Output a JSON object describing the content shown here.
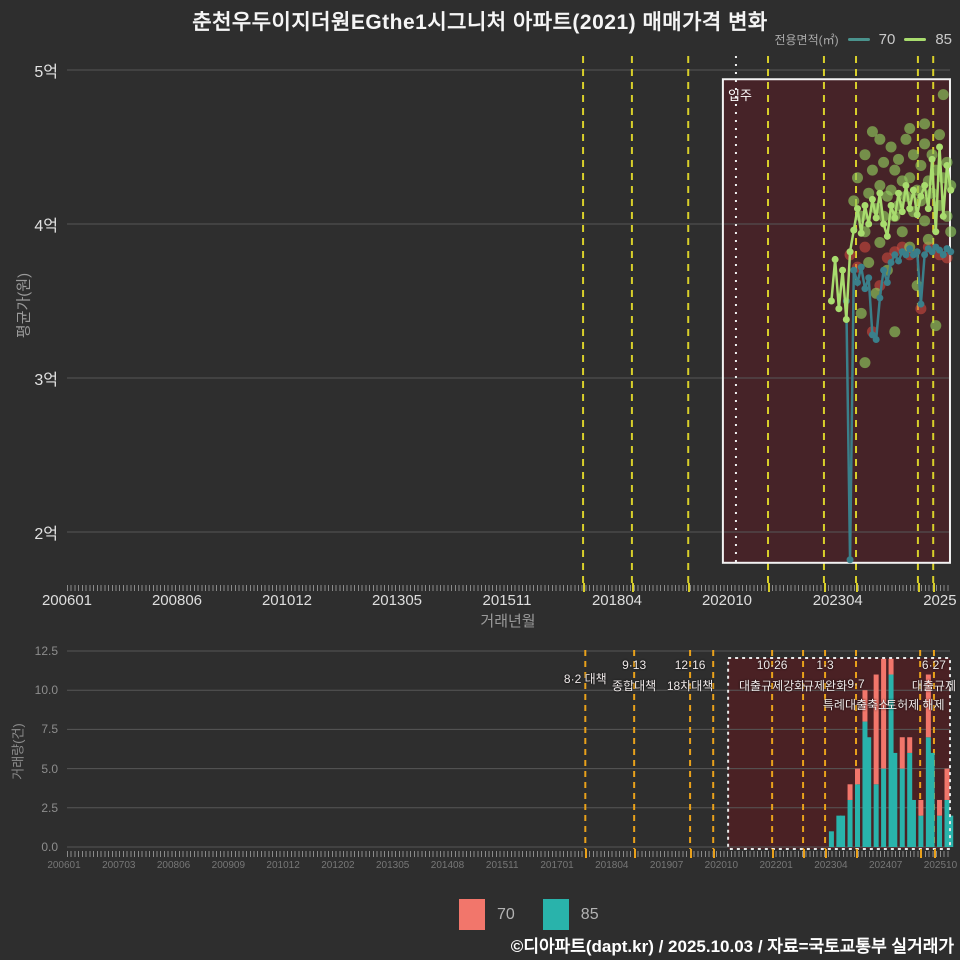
{
  "title": "춘천우두이지더원EGthe1시그니처 아파트(2021) 매매가격 변화",
  "footer": "©디아파트(dapt.kr) / 2025.10.03 / 자료=국토교통부 실거래가",
  "top_legend": {
    "label": "전용면적(㎡)",
    "items": [
      {
        "label": "70",
        "color": "#4a938d"
      },
      {
        "label": "85",
        "color": "#a8dc6e"
      }
    ]
  },
  "bottom_legend": {
    "items": [
      {
        "label": "70",
        "color": "#f2766b"
      },
      {
        "label": "85",
        "color": "#29b3ab"
      }
    ]
  },
  "colors": {
    "background": "#2e2e2e",
    "grid": "#575757",
    "event_line_top": "#d8cf2a",
    "event_line_bottom": "#e9a11b",
    "move_in_box_fill": "#462328",
    "highlight_box_fill": "#4a2124",
    "line_70": "#3a7f8a",
    "line_85": "#a8dc6e",
    "scatter_85": "#8fc95c",
    "scatter_70": "#d94f3f",
    "bar_70": "#f2766b",
    "bar_85": "#29b3ab"
  },
  "chart_data": [
    {
      "type": "scatter",
      "title": "매매가격 변화(평균가)",
      "ylabel": "평균가(원)",
      "xlabel": "거래년월",
      "ylim_eok": [
        1.7,
        5.1
      ],
      "yticks": [
        {
          "label": "5억",
          "v": 5
        },
        {
          "label": "4억",
          "v": 4
        },
        {
          "label": "3억",
          "v": 3
        },
        {
          "label": "2억",
          "v": 2
        }
      ],
      "xticks": [
        {
          "label": "200601",
          "m": 0
        },
        {
          "label": "200806",
          "m": 29.5
        },
        {
          "label": "201012",
          "m": 59
        },
        {
          "label": "201305",
          "m": 88.5
        },
        {
          "label": "201511",
          "m": 118
        },
        {
          "label": "201804",
          "m": 147.5
        },
        {
          "label": "202010",
          "m": 177
        },
        {
          "label": "202304",
          "m": 206.7
        },
        {
          "label": "2025",
          "m": 234.1
        }
      ],
      "event_lines_m": [
        138.4,
        151.5,
        166.6,
        188.0,
        203.0,
        211.6,
        228.2,
        232.3
      ],
      "move_in": {
        "label": "입주",
        "line_m": 179.4,
        "box_m": [
          175.9,
          236.8
        ],
        "box_v": [
          1.8,
          4.94
        ]
      },
      "series": [
        {
          "name": "70",
          "color": "#3a7f8a",
          "line": [
            [
              209,
              3.5
            ],
            [
              210,
              1.82
            ],
            [
              211,
              3.7
            ],
            [
              212,
              3.62
            ],
            [
              213,
              3.72
            ],
            [
              214,
              3.58
            ],
            [
              215,
              3.65
            ],
            [
              216,
              3.28
            ],
            [
              217,
              3.25
            ],
            [
              218,
              3.52
            ],
            [
              219,
              3.7
            ],
            [
              220,
              3.62
            ],
            [
              221,
              3.75
            ],
            [
              222,
              3.8
            ],
            [
              223,
              3.76
            ],
            [
              224,
              3.82
            ],
            [
              225,
              3.8
            ],
            [
              226,
              3.84
            ],
            [
              227,
              3.8
            ],
            [
              228,
              3.82
            ],
            [
              229,
              3.48
            ],
            [
              230,
              3.8
            ],
            [
              231,
              3.84
            ],
            [
              232,
              3.82
            ],
            [
              233,
              3.85
            ],
            [
              234,
              3.83
            ],
            [
              235,
              3.8
            ],
            [
              236,
              3.84
            ],
            [
              237,
              3.82
            ]
          ]
        },
        {
          "name": "85",
          "color": "#a8dc6e",
          "line": [
            [
              205,
              3.5
            ],
            [
              206,
              3.77
            ],
            [
              207,
              3.45
            ],
            [
              208,
              3.7
            ],
            [
              209,
              3.38
            ],
            [
              210,
              3.82
            ],
            [
              211,
              3.96
            ],
            [
              212,
              4.1
            ],
            [
              213,
              3.94
            ],
            [
              214,
              4.12
            ],
            [
              215,
              4.0
            ],
            [
              216,
              4.16
            ],
            [
              217,
              4.04
            ],
            [
              218,
              4.2
            ],
            [
              219,
              4.0
            ],
            [
              220,
              3.92
            ],
            [
              221,
              4.12
            ],
            [
              222,
              4.04
            ],
            [
              223,
              4.2
            ],
            [
              224,
              4.08
            ],
            [
              225,
              4.25
            ],
            [
              226,
              4.1
            ],
            [
              227,
              4.22
            ],
            [
              228,
              4.06
            ],
            [
              229,
              4.18
            ],
            [
              230,
              4.25
            ],
            [
              231,
              4.1
            ],
            [
              232,
              4.42
            ],
            [
              233,
              3.95
            ],
            [
              234,
              4.5
            ],
            [
              235,
              4.05
            ],
            [
              236,
              4.38
            ],
            [
              237,
              4.22
            ]
          ]
        }
      ],
      "scatter": [
        {
          "name": "85",
          "color": "#8fc95c",
          "opacity": 0.65,
          "points": [
            [
              211,
              4.15
            ],
            [
              212,
              4.3
            ],
            [
              213,
              4.05
            ],
            [
              213,
              3.42
            ],
            [
              214,
              4.45
            ],
            [
              214,
              3.95
            ],
            [
              214,
              3.1
            ],
            [
              215,
              4.2
            ],
            [
              215,
              3.75
            ],
            [
              216,
              4.35
            ],
            [
              216,
              4.6
            ],
            [
              217,
              4.1
            ],
            [
              217,
              3.55
            ],
            [
              218,
              4.25
            ],
            [
              218,
              3.88
            ],
            [
              218,
              4.55
            ],
            [
              219,
              4.4
            ],
            [
              219,
              4.05
            ],
            [
              220,
              4.18
            ],
            [
              220,
              3.7
            ],
            [
              221,
              4.5
            ],
            [
              221,
              4.22
            ],
            [
              222,
              4.35
            ],
            [
              222,
              3.3
            ],
            [
              222,
              4.05
            ],
            [
              223,
              4.42
            ],
            [
              223,
              4.12
            ],
            [
              224,
              4.28
            ],
            [
              224,
              3.95
            ],
            [
              225,
              4.55
            ],
            [
              225,
              4.18
            ],
            [
              226,
              4.3
            ],
            [
              226,
              3.85
            ],
            [
              226,
              4.62
            ],
            [
              227,
              4.45
            ],
            [
              227,
              4.08
            ],
            [
              228,
              4.22
            ],
            [
              228,
              3.6
            ],
            [
              229,
              4.38
            ],
            [
              229,
              4.15
            ],
            [
              230,
              4.52
            ],
            [
              230,
              4.02
            ],
            [
              230,
              4.65
            ],
            [
              231,
              4.28
            ],
            [
              231,
              3.9
            ],
            [
              232,
              4.45
            ],
            [
              232,
              4.2
            ],
            [
              233,
              4.35
            ],
            [
              233,
              3.34
            ],
            [
              234,
              4.58
            ],
            [
              234,
              4.12
            ],
            [
              235,
              4.84
            ],
            [
              235,
              4.3
            ],
            [
              236,
              4.4
            ],
            [
              236,
              4.05
            ],
            [
              237,
              4.25
            ],
            [
              237,
              3.95
            ]
          ]
        },
        {
          "name": "70",
          "color": "#d94f3f",
          "opacity": 0.55,
          "points": [
            [
              210,
              3.8
            ],
            [
              212,
              3.72
            ],
            [
              214,
              3.85
            ],
            [
              216,
              3.3
            ],
            [
              218,
              3.6
            ],
            [
              220,
              3.78
            ],
            [
              222,
              3.82
            ],
            [
              224,
              3.85
            ],
            [
              226,
              3.8
            ],
            [
              229,
              3.45
            ],
            [
              231,
              3.85
            ],
            [
              234,
              3.8
            ],
            [
              236,
              3.78
            ]
          ]
        }
      ]
    },
    {
      "type": "bar",
      "stacked": true,
      "title": "거래량",
      "ylabel": "거래량(건)",
      "ylim": [
        0,
        12.5
      ],
      "yticks": [
        {
          "label": "12.5",
          "u": 12.5
        },
        {
          "label": "10.0",
          "u": 10
        },
        {
          "label": "7.5",
          "u": 7.5
        },
        {
          "label": "5.0",
          "u": 5
        },
        {
          "label": "2.5",
          "u": 2.5
        },
        {
          "label": "0.0",
          "u": 0
        }
      ],
      "xticks": [
        "200601",
        "200703",
        "200806",
        "200909",
        "201012",
        "201202",
        "201305",
        "201408",
        "201511",
        "201701",
        "201804",
        "201907",
        "202010",
        "202201",
        "202304",
        "202407",
        "202510"
      ],
      "event_lines_m": [
        139.0,
        152.1,
        167.1,
        173.3,
        189.1,
        197.4,
        203.3,
        211.6,
        228.8,
        232.5
      ],
      "highlight_box_m": [
        177.3,
        236.8
      ],
      "annotations": [
        {
          "m": 139.0,
          "lines": [
            "8·2 대책"
          ],
          "dy": 12
        },
        {
          "m": 152.1,
          "lines": [
            "9·13",
            "종합대책"
          ],
          "dy": 0
        },
        {
          "m": 167.1,
          "lines": [
            "12·16",
            "18차대책"
          ],
          "dy": 0
        },
        {
          "m": 189.1,
          "lines": [
            "10·26",
            "대출규제강화"
          ],
          "dy": 0
        },
        {
          "m": 203.3,
          "lines": [
            "1·3",
            "규제완화"
          ],
          "dy": 0
        },
        {
          "m": 211.6,
          "lines": [
            "",
            "9·7",
            "특례대출축소"
          ],
          "dy": 0
        },
        {
          "m": 227.5,
          "lines": [
            "",
            "",
            "토허제 해제"
          ],
          "dy": 0
        },
        {
          "m": 232.5,
          "lines": [
            "6·27",
            "대출규제"
          ],
          "dy": 0
        }
      ],
      "bars": [
        {
          "m": 205,
          "v85": 1,
          "v70": 0
        },
        {
          "m": 207,
          "v85": 2,
          "v70": 0
        },
        {
          "m": 208,
          "v85": 2,
          "v70": 0
        },
        {
          "m": 210,
          "v85": 3,
          "v70": 1
        },
        {
          "m": 212,
          "v85": 4,
          "v70": 1
        },
        {
          "m": 214,
          "v85": 8,
          "v70": 2
        },
        {
          "m": 215,
          "v85": 7,
          "v70": 0
        },
        {
          "m": 217,
          "v85": 4,
          "v70": 7
        },
        {
          "m": 219,
          "v85": 5,
          "v70": 7
        },
        {
          "m": 221,
          "v85": 11,
          "v70": 1
        },
        {
          "m": 222,
          "v85": 6,
          "v70": 0
        },
        {
          "m": 224,
          "v85": 5,
          "v70": 2
        },
        {
          "m": 226,
          "v85": 6,
          "v70": 1
        },
        {
          "m": 227,
          "v85": 3,
          "v70": 0
        },
        {
          "m": 229,
          "v85": 2,
          "v70": 1
        },
        {
          "m": 231,
          "v85": 7,
          "v70": 4
        },
        {
          "m": 232,
          "v85": 6,
          "v70": 0
        },
        {
          "m": 234,
          "v85": 2,
          "v70": 1
        },
        {
          "m": 236,
          "v85": 3,
          "v70": 2
        },
        {
          "m": 237,
          "v85": 2,
          "v70": 0
        }
      ]
    }
  ]
}
